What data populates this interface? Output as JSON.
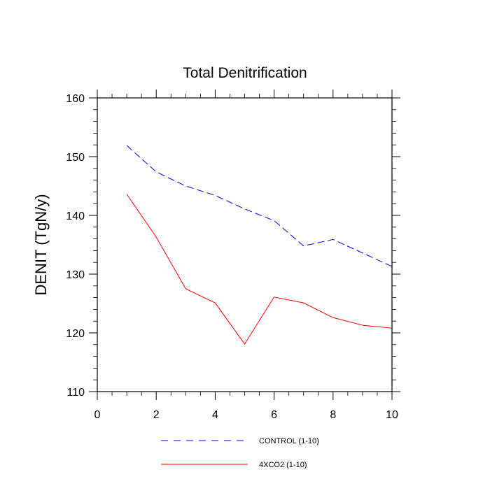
{
  "chart_data": {
    "type": "line",
    "title": "Total Denitrification",
    "xlabel": "",
    "ylabel": "DENIT  (TgN/y)",
    "xlim": [
      0,
      10
    ],
    "ylim": [
      110,
      160
    ],
    "x_ticks": [
      0,
      2,
      4,
      6,
      8,
      10
    ],
    "y_ticks": [
      110,
      120,
      130,
      140,
      150,
      160
    ],
    "grid": false,
    "legend_position": "bottom",
    "x": [
      1,
      2,
      3,
      4,
      5,
      6,
      7,
      8,
      9,
      10
    ],
    "series": [
      {
        "name": "CONTROL (1-10)",
        "color": "#0000ff",
        "style": "dashed",
        "values": [
          151.9,
          147.4,
          145.0,
          143.4,
          141.1,
          139.1,
          134.8,
          135.9,
          133.6,
          131.3
        ]
      },
      {
        "name": "4XCO2 (1-10)",
        "color": "#ff0000",
        "style": "solid",
        "values": [
          143.6,
          136.3,
          127.5,
          125.1,
          118.1,
          126.1,
          125.1,
          122.6,
          121.3,
          120.8
        ]
      }
    ]
  }
}
